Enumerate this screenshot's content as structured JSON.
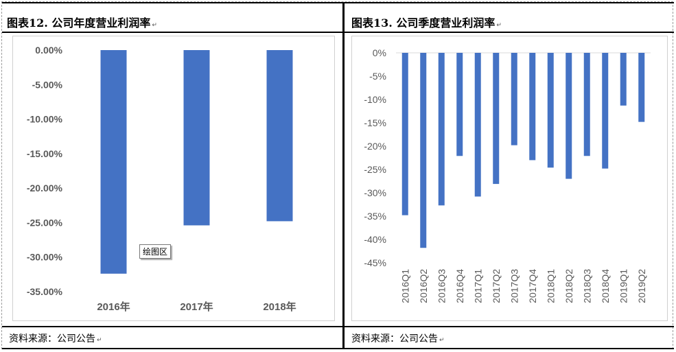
{
  "left_panel": {
    "title": "图表12.  公司年度营业利润率",
    "source": "资料来源：公司公告",
    "tooltip": "绘图区"
  },
  "right_panel": {
    "title": "图表13.  公司季度营业利润率",
    "source": "资料来源：公司公告"
  },
  "chart_data": [
    {
      "type": "bar",
      "title": "",
      "categories": [
        "2016年",
        "2017年",
        "2018年"
      ],
      "values": [
        -32.4,
        -25.4,
        -24.8
      ],
      "ylim": [
        -35,
        0
      ],
      "yticks": [
        0,
        -5,
        -10,
        -15,
        -20,
        -25,
        -30,
        -35
      ],
      "ytick_labels": [
        "0.00%",
        "-5.00%",
        "-10.00%",
        "-15.00%",
        "-20.00%",
        "-25.00%",
        "-30.00%",
        "-35.00%"
      ],
      "grid": false,
      "color": "#4472C4"
    },
    {
      "type": "bar",
      "title": "",
      "categories": [
        "2016Q1",
        "2016Q2",
        "2016Q3",
        "2016Q4",
        "2017Q1",
        "2017Q2",
        "2017Q3",
        "2017Q4",
        "2018Q1",
        "2018Q2",
        "2018Q3",
        "2018Q4",
        "2019Q1",
        "2019Q2"
      ],
      "values": [
        -34.8,
        -41.8,
        -32.7,
        -22.1,
        -30.8,
        -28.1,
        -19.8,
        -23.0,
        -24.6,
        -27.0,
        -22.1,
        -24.8,
        -11.3,
        -14.8
      ],
      "ylim": [
        -45,
        0
      ],
      "yticks": [
        0,
        -5,
        -10,
        -15,
        -20,
        -25,
        -30,
        -35,
        -40,
        -45
      ],
      "ytick_labels": [
        "0%",
        "-5%",
        "-10%",
        "-15%",
        "-20%",
        "-25%",
        "-30%",
        "-35%",
        "-40%",
        "-45%"
      ],
      "grid": false,
      "color": "#4472C4"
    }
  ]
}
